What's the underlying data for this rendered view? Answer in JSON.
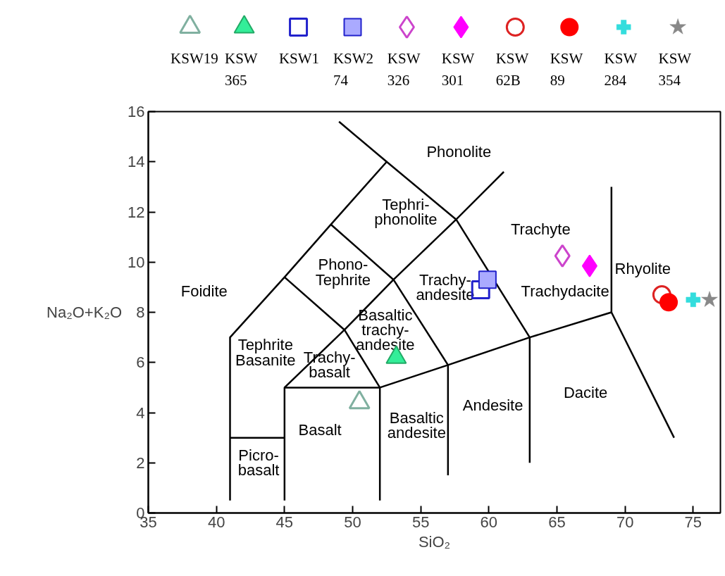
{
  "chart_data": {
    "type": "scatter",
    "xlabel": "SiO₂",
    "ylabel": "Na₂O+K₂O",
    "xlim": [
      35,
      77
    ],
    "ylim": [
      0,
      16
    ],
    "xticks": [
      35,
      40,
      45,
      50,
      55,
      60,
      65,
      70,
      75
    ],
    "yticks": [
      0,
      2,
      4,
      6,
      8,
      10,
      12,
      14,
      16
    ],
    "grid": false,
    "legend": "top",
    "series": [
      {
        "type": "line",
        "color": "#000000",
        "x": [
          41,
          41,
          45,
          48.4,
          52.5,
          57.6,
          63,
          63
        ],
        "values": [
          0.5,
          7,
          9.4,
          11.5,
          14,
          11.7,
          7,
          2
        ]
      },
      {
        "type": "line",
        "color": "#000000",
        "x": [
          41,
          45
        ],
        "values": [
          3,
          3
        ]
      },
      {
        "type": "line",
        "color": "#000000",
        "x": [
          45,
          45,
          52,
          57,
          63,
          69,
          73.6
        ],
        "values": [
          0.5,
          5,
          5,
          5.9,
          7,
          8,
          3
        ]
      },
      {
        "type": "line",
        "color": "#000000",
        "x": [
          52,
          52,
          49.4,
          45
        ],
        "values": [
          0.5,
          5,
          7.3,
          9.4
        ]
      },
      {
        "type": "line",
        "color": "#000000",
        "x": [
          45,
          49.4,
          53,
          57.6,
          61.1
        ],
        "values": [
          5,
          7.3,
          9.3,
          11.7,
          13.6
        ]
      },
      {
        "type": "line",
        "color": "#000000",
        "x": [
          57,
          57,
          53,
          48.4
        ],
        "values": [
          1.5,
          5.9,
          9.3,
          11.5
        ]
      },
      {
        "type": "line",
        "color": "#000000",
        "x": [
          49.0,
          52.5
        ],
        "values": [
          15.6,
          14
        ]
      },
      {
        "type": "line",
        "color": "#000000",
        "x": [
          69,
          69
        ],
        "values": [
          8,
          13
        ]
      },
      {
        "name": "KSW19",
        "marker": "triangle",
        "color": "#80b0a0",
        "x": [
          50.5
        ],
        "values": [
          4.4
        ]
      },
      {
        "name": "KSW 365",
        "marker": "triangle",
        "color": "#33ee99",
        "x": [
          53.2
        ],
        "values": [
          6.2
        ]
      },
      {
        "name": "KSW1",
        "marker": "square",
        "color": "#2222cc",
        "x": [
          59.4
        ],
        "values": [
          8.9
        ]
      },
      {
        "name": "KSW2 74",
        "marker": "square",
        "color": "#aaaaff",
        "x": [
          59.9
        ],
        "values": [
          9.3
        ]
      },
      {
        "name": "KSW 326",
        "marker": "diamond",
        "color": "#cc44cc",
        "x": [
          65.4
        ],
        "values": [
          10.25
        ]
      },
      {
        "name": "KSW 301",
        "marker": "diamond",
        "color": "#ff00ff",
        "x": [
          67.4
        ],
        "values": [
          9.85
        ]
      },
      {
        "name": "KSW 62B",
        "marker": "circle",
        "color": "#dd2222",
        "x": [
          72.7
        ],
        "values": [
          8.7
        ]
      },
      {
        "name": "KSW 89",
        "marker": "circle",
        "color": "#ff0000",
        "x": [
          73.2
        ],
        "values": [
          8.4
        ]
      },
      {
        "name": "KSW 284",
        "marker": "cross",
        "color": "#33dddd",
        "x": [
          75.0
        ],
        "values": [
          8.5
        ]
      },
      {
        "name": "KSW 354",
        "marker": "star",
        "color": "#888888",
        "x": [
          76.2
        ],
        "values": [
          8.5
        ]
      }
    ],
    "annotations": [
      "Phonolite",
      "Tephri-\nphonolite",
      "Trachyte",
      "Foidite",
      "Phono-\nTephrite",
      "Trachy-\nandesite",
      "Trachydacite",
      "Rhyolite",
      "Tephrite\nBasanite",
      "Basaltic\ntrachy-\nandesite",
      "Trachy-\nbasalt",
      "Andesite",
      "Dacite",
      "Basalt",
      "Basaltic\nandesite",
      "Picro-\nbasalt"
    ]
  }
}
